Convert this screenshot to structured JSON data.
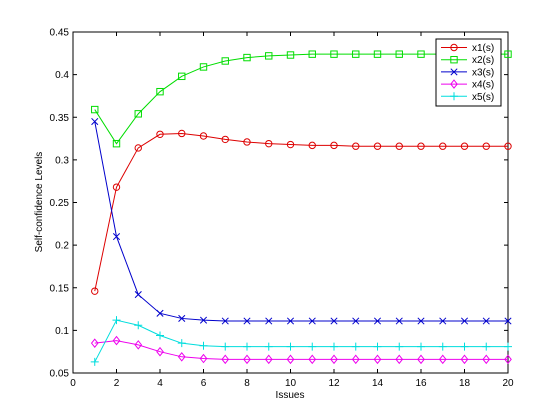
{
  "chart_data": {
    "type": "line",
    "xlabel": "Issues",
    "ylabel": "Self-confidence Levels",
    "xlim": [
      0,
      20
    ],
    "ylim": [
      0.05,
      0.45
    ],
    "xticks": [
      0,
      2,
      4,
      6,
      8,
      10,
      12,
      14,
      16,
      18,
      20
    ],
    "yticks": [
      0.05,
      0.1,
      0.15,
      0.2,
      0.25,
      0.3,
      0.35,
      0.4,
      0.45
    ],
    "ytick_labels": [
      "0.05",
      "0.1",
      "0.15",
      "0.2",
      "0.25",
      "0.3",
      "0.35",
      "0.4",
      "0.45"
    ],
    "grid": false,
    "legend_position": "top-right",
    "x": [
      1,
      2,
      3,
      4,
      5,
      6,
      7,
      8,
      9,
      10,
      11,
      12,
      13,
      14,
      15,
      16,
      17,
      18,
      19,
      20
    ],
    "series": [
      {
        "name": "x1(s)",
        "color": "#dd0000",
        "marker": "circle",
        "values": [
          0.146,
          0.268,
          0.314,
          0.33,
          0.331,
          0.328,
          0.324,
          0.321,
          0.319,
          0.318,
          0.317,
          0.317,
          0.316,
          0.316,
          0.316,
          0.316,
          0.316,
          0.316,
          0.316,
          0.316
        ]
      },
      {
        "name": "x2(s)",
        "color": "#00dd00",
        "marker": "square",
        "values": [
          0.359,
          0.319,
          0.354,
          0.38,
          0.398,
          0.409,
          0.416,
          0.42,
          0.422,
          0.423,
          0.424,
          0.424,
          0.424,
          0.424,
          0.424,
          0.424,
          0.424,
          0.424,
          0.424,
          0.424
        ]
      },
      {
        "name": "x3(s)",
        "color": "#0000cc",
        "marker": "x",
        "values": [
          0.345,
          0.21,
          0.142,
          0.12,
          0.114,
          0.112,
          0.111,
          0.111,
          0.111,
          0.111,
          0.111,
          0.111,
          0.111,
          0.111,
          0.111,
          0.111,
          0.111,
          0.111,
          0.111,
          0.111
        ]
      },
      {
        "name": "x4(s)",
        "color": "#ee00ee",
        "marker": "diamond",
        "values": [
          0.085,
          0.088,
          0.083,
          0.075,
          0.069,
          0.067,
          0.066,
          0.066,
          0.066,
          0.066,
          0.066,
          0.066,
          0.066,
          0.066,
          0.066,
          0.066,
          0.066,
          0.066,
          0.066,
          0.066
        ]
      },
      {
        "name": "x5(s)",
        "color": "#00dddd",
        "marker": "plus",
        "values": [
          0.063,
          0.112,
          0.106,
          0.094,
          0.085,
          0.082,
          0.081,
          0.081,
          0.081,
          0.081,
          0.081,
          0.081,
          0.081,
          0.081,
          0.081,
          0.081,
          0.081,
          0.081,
          0.081,
          0.081
        ]
      }
    ]
  }
}
